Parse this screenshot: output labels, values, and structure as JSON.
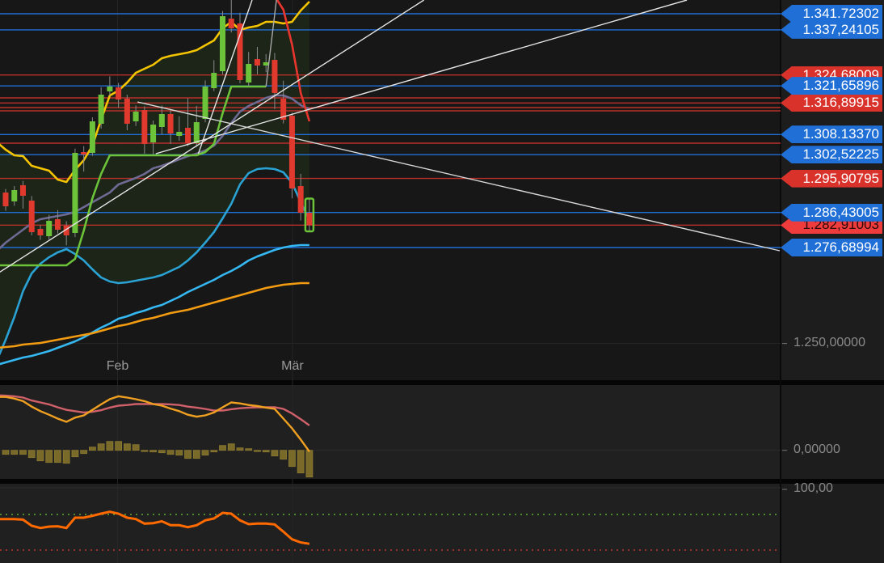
{
  "chart_data": [
    {
      "type": "candlestick",
      "title": "",
      "x_ticks": [
        {
          "label": "Feb",
          "at_candle": 13.9
        },
        {
          "label": "Mär",
          "at_candle": 34.05
        }
      ],
      "y_ticks": [
        {
          "label": "1.250,00000",
          "value": 1250
        }
      ],
      "colors": {
        "up": "#6cc33a",
        "down": "#e0392e",
        "band_fill": "#1d2718"
      },
      "candles_ohlc": [
        [
          1287.72,
          1291.5,
          1286.5,
          1290.87
        ],
        [
          1291.99,
          1293,
          1286.9,
          1288.17
        ],
        [
          1289.52,
          1293.8,
          1288.3,
          1292.67
        ],
        [
          1294.02,
          1295.2,
          1287.5,
          1291.09
        ],
        [
          1289.74,
          1291,
          1280.1,
          1280.97
        ],
        [
          1281.87,
          1282.9,
          1278.8,
          1280.07
        ],
        [
          1279.84,
          1285.8,
          1278.9,
          1284.12
        ],
        [
          1284.57,
          1287.1,
          1280.6,
          1281.64
        ],
        [
          1282.77,
          1284,
          1277.3,
          1280.07
        ],
        [
          1280.74,
          1304.2,
          1279.6,
          1303.02
        ],
        [
          1303.24,
          1304.9,
          1297.8,
          1302.57
        ],
        [
          1303.02,
          1312.9,
          1302.2,
          1311.79
        ],
        [
          1311.12,
          1321.3,
          1309.8,
          1319.22
        ],
        [
          1320.12,
          1324.3,
          1318.9,
          1321.47
        ],
        [
          1321.24,
          1322.5,
          1315.6,
          1317.87
        ],
        [
          1318.09,
          1319.2,
          1309.3,
          1311.12
        ],
        [
          1311.79,
          1316.2,
          1310.5,
          1314.49
        ],
        [
          1314.94,
          1316,
          1302.8,
          1305.49
        ],
        [
          1305.94,
          1312,
          1302.5,
          1310.89
        ],
        [
          1310.22,
          1316.2,
          1308.2,
          1313.82
        ],
        [
          1313.82,
          1315.2,
          1305.5,
          1308.42
        ],
        [
          1307.74,
          1313.2,
          1306.4,
          1308.87
        ],
        [
          1309.99,
          1318.2,
          1304.9,
          1305.72
        ],
        [
          1305.72,
          1316.1,
          1304.7,
          1311.57
        ],
        [
          1312.47,
          1323.2,
          1311.5,
          1321.47
        ],
        [
          1321.02,
          1328.8,
          1320.2,
          1325.29
        ],
        [
          1325.74,
          1342.5,
          1324.9,
          1341.04
        ],
        [
          1340.37,
          1346,
          1336.5,
          1337.67
        ],
        [
          1339.02,
          1342,
          1322.4,
          1323.27
        ],
        [
          1322.59,
          1331.1,
          1321.5,
          1327.77
        ],
        [
          1329.12,
          1332.5,
          1324.9,
          1327.32
        ],
        [
          1327.32,
          1330.5,
          1325.5,
          1328.22
        ],
        [
          1328.89,
          1330.8,
          1315.2,
          1319.67
        ],
        [
          1318.09,
          1323.1,
          1311.2,
          1312.24
        ],
        [
          1313.37,
          1314.2,
          1290.4,
          1293.12
        ],
        [
          1293.79,
          1297.2,
          1284.2,
          1286.37
        ],
        [
          1286.37,
          1290.3,
          1281.2,
          1282.99
        ]
      ],
      "overlays": [
        {
          "id": "upper-band",
          "color": "#f5c400",
          "values": [
            1305.94,
            1303.92,
            1302.34,
            1302.12,
            1299.42,
            1298.74,
            1298.07,
            1295.59,
            1294.92,
            1298.29,
            1300.99,
            1305.04,
            1312.24,
            1318.99,
            1320.34,
            1322.59,
            1325.29,
            1326.42,
            1327.54,
            1329.34,
            1330.02,
            1330.47,
            1330.92,
            1331.59,
            1332.94,
            1334.29,
            1337.67,
            1339.47,
            1337.22,
            1337.89,
            1338.34,
            1339.47,
            1339.47,
            1339.02,
            1339.47,
            1342.62,
            1345.09
          ]
        },
        {
          "id": "middle-band",
          "color": "#6f6a94",
          "values": [
            1275.79,
            1278.04,
            1279.84,
            1281.64,
            1283.44,
            1284.57,
            1285.02,
            1285.47,
            1285.92,
            1286.59,
            1287.94,
            1289.29,
            1290.64,
            1291.99,
            1294.24,
            1295.14,
            1296.04,
            1297.17,
            1298.74,
            1299.42,
            1300.32,
            1301.22,
            1302.12,
            1302.79,
            1303.69,
            1305.04,
            1307.74,
            1311.34,
            1314.49,
            1316.07,
            1317.19,
            1318.32,
            1318.99,
            1318.99,
            1318.09,
            1316.29,
            1315.17
          ]
        },
        {
          "id": "lower-band",
          "color": "#2aa3d4",
          "values": [
            1245.41,
            1251.04,
            1257.34,
            1264.54,
            1269.49,
            1272.19,
            1273.99,
            1275.34,
            1276.24,
            1274.89,
            1273.09,
            1270.61,
            1268.36,
            1267.24,
            1266.79,
            1267.01,
            1267.46,
            1267.91,
            1268.36,
            1269.04,
            1270.16,
            1271.29,
            1273.09,
            1275.34,
            1278.04,
            1280.97,
            1284.79,
            1288.84,
            1294.24,
            1297.39,
            1298.52,
            1298.74,
            1298.52,
            1297.62,
            1294.69,
            1289.29,
            1284.34
          ]
        },
        {
          "id": "step-line",
          "color": "#6cc33a",
          "values": [
            1271.74,
            1271.74,
            1271.74,
            1271.74,
            1271.74,
            1271.74,
            1271.74,
            1271.74,
            1271.74,
            1273.54,
            1281.42,
            1290.42,
            1297.17,
            1302.34,
            1302.34,
            1302.34,
            1302.34,
            1302.34,
            1302.34,
            1302.34,
            1302.34,
            1302.34,
            1302.34,
            1302.34,
            1303.24,
            1305.49,
            1314.04,
            1321.47,
            1321.47,
            1321.47,
            1321.47,
            1321.47,
            null,
            null,
            null,
            null,
            null
          ]
        },
        {
          "id": "red-line",
          "color": "#e8362e",
          "values": [
            null,
            null,
            null,
            null,
            null,
            null,
            null,
            null,
            null,
            null,
            null,
            null,
            null,
            null,
            null,
            null,
            null,
            null,
            null,
            null,
            null,
            null,
            null,
            null,
            null,
            null,
            null,
            null,
            null,
            null,
            null,
            null,
            1346.67,
            1342.84,
            1333.17,
            1319.67,
            1311.79
          ]
        },
        {
          "id": "light-blue-ma",
          "color": "#35b8f2",
          "values": [
            1244.06,
            1244.74,
            1245.41,
            1246.09,
            1246.54,
            1247.21,
            1247.89,
            1248.79,
            1249.69,
            1250.59,
            1251.71,
            1253.06,
            1254.41,
            1255.54,
            1256.89,
            1257.56,
            1258.46,
            1259.14,
            1260.04,
            1260.71,
            1261.84,
            1262.96,
            1264.31,
            1265.44,
            1266.56,
            1267.69,
            1269.04,
            1270.16,
            1271.51,
            1273.09,
            1274.21,
            1275.11,
            1276.01,
            1276.69,
            1277.14,
            1277.37,
            1277.37
          ]
        },
        {
          "id": "orange-ma",
          "color": "#f39c12",
          "values": [
            1248.79,
            1249.01,
            1249.24,
            1249.69,
            1249.91,
            1250.14,
            1250.59,
            1251.04,
            1251.49,
            1251.94,
            1252.39,
            1252.84,
            1253.51,
            1254.19,
            1254.86,
            1255.31,
            1255.99,
            1256.66,
            1257.11,
            1257.79,
            1258.46,
            1258.91,
            1259.36,
            1260.04,
            1260.71,
            1261.39,
            1262.06,
            1262.74,
            1263.41,
            1264.09,
            1264.76,
            1265.44,
            1265.89,
            1266.34,
            1266.56,
            1266.79,
            1266.79
          ]
        }
      ],
      "trend_lines": [
        {
          "id": "trend-a",
          "color": "#e6e6e6",
          "from": [
            -0.35,
            1268.81
          ],
          "to": [
            49.2,
            1345.54
          ]
        },
        {
          "id": "trend-b",
          "color": "#e6e6e6",
          "from": [
            18.3,
            1302.79
          ],
          "to": [
            79.5,
            1345.54
          ]
        },
        {
          "id": "trend-c",
          "color": "#e6e6e6",
          "from": [
            23.2,
            1302.79
          ],
          "to": [
            29.4,
            1345.54
          ]
        },
        {
          "id": "trend-d",
          "color": "#d8d8d8",
          "from": [
            16.2,
            1317.19
          ],
          "to": [
            90.2,
            1275.79
          ]
        },
        {
          "id": "trend-gray",
          "color": "#a8a8a8",
          "from": [
            31,
            1321.47
          ],
          "to": [
            32.2,
            1345.54
          ]
        }
      ],
      "horizontal_levels": [
        {
          "value": 1324.68009,
          "label": "1.324,68009",
          "color": "red"
        },
        {
          "value": 1318.32,
          "label": "",
          "color": "red"
        },
        {
          "value": 1316.89915,
          "label": "1.316,89915",
          "color": "red"
        },
        {
          "value": 1315.62,
          "label": "",
          "color": "red"
        },
        {
          "value": 1314.72,
          "label": "",
          "color": "red"
        },
        {
          "value": 1305.72,
          "label": "",
          "color": "red"
        },
        {
          "value": 1295.90795,
          "label": "1.295,90795",
          "color": "red"
        },
        {
          "value": 1282.91003,
          "label": "1.282,91003",
          "color": "red-light"
        },
        {
          "value": 1341.72302,
          "label": "1.341.72302",
          "color": "blue"
        },
        {
          "value": 1337.24105,
          "label": "1.337,24105",
          "color": "blue"
        },
        {
          "value": 1321.65896,
          "label": "1.321,65896",
          "color": "blue"
        },
        {
          "value": 1308.1337,
          "label": "1.308.13370",
          "color": "blue"
        },
        {
          "value": 1302.52225,
          "label": "1.302,52225",
          "color": "blue"
        },
        {
          "value": 1286.43005,
          "label": "1.286,43005",
          "color": "blue"
        },
        {
          "value": 1276.68994,
          "label": "1.276,68994",
          "color": "blue"
        }
      ]
    },
    {
      "type": "macd",
      "y_ticks": [
        {
          "label": "0,00000",
          "value": 0
        }
      ],
      "histogram": [
        null,
        -1.25,
        -1.25,
        -1.25,
        -2.25,
        -3.25,
        -3.75,
        -3.75,
        -4,
        -2,
        -1,
        1,
        2,
        2.75,
        2.75,
        2,
        1.75,
        -0.25,
        -0.5,
        -0.75,
        -1.25,
        -1.5,
        -2.5,
        -2.5,
        -1.5,
        -0.5,
        1.5,
        2,
        0.75,
        0.5,
        -0.25,
        -0.5,
        -1.75,
        -2.75,
        -5,
        -7,
        -8.25
      ],
      "macd": [
        16.5,
        16.5,
        16.0,
        15.2,
        13.5,
        12.1,
        11.0,
        9.8,
        8.8,
        10.1,
        10.8,
        12.5,
        14.2,
        15.8,
        16.7,
        16.3,
        15.8,
        15.2,
        14.3,
        13.8,
        12.9,
        12.1,
        11.0,
        10.4,
        10.8,
        11.7,
        13.3,
        14.8,
        14.5,
        14.0,
        13.7,
        13.2,
        12.8,
        9.8,
        6.8,
        3.3,
        -0.4
      ],
      "signal": [
        17.0,
        16.9,
        16.7,
        16.3,
        15.4,
        14.8,
        14.2,
        13.3,
        12.5,
        12.1,
        11.7,
        11.9,
        12.4,
        13.2,
        13.8,
        14.0,
        14.3,
        14.3,
        14.3,
        14.3,
        14.2,
        14.0,
        13.5,
        13.2,
        12.8,
        12.3,
        12.3,
        12.7,
        13.0,
        13.2,
        13.3,
        13.3,
        13.3,
        12.8,
        11.4,
        9.6,
        7.7
      ],
      "colors": {
        "macd": "#f0a020",
        "signal": "#d0606a",
        "histogram": "#7a6a2a"
      }
    },
    {
      "type": "line",
      "y_ticks": [
        {
          "label": "100,00",
          "value": 100
        }
      ],
      "levels": [
        {
          "value": 70,
          "color": "#6cc33a"
        },
        {
          "value": 30,
          "color": "#e0392e"
        }
      ],
      "values": [
        64.8,
        64.8,
        64.8,
        64.2,
        57.3,
        54.8,
        56.4,
        56.7,
        54.8,
        66.4,
        66.4,
        68.5,
        70.9,
        73.0,
        70.9,
        66.4,
        64.8,
        59.7,
        60.3,
        62.4,
        57.9,
        57.9,
        55.7,
        57.9,
        63.4,
        65.5,
        71.8,
        70.9,
        63.4,
        59.1,
        59.7,
        59.7,
        58.8,
        50.6,
        42.1,
        38.5,
        37.0
      ],
      "color": "#ff6a00"
    }
  ]
}
